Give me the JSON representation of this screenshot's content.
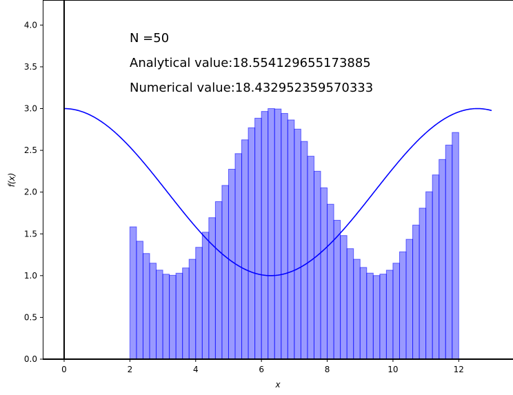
{
  "chart_data": {
    "type": "bar",
    "xlabel": "x",
    "ylabel": "f(x)",
    "xlim": [
      -0.65,
      13.65
    ],
    "ylim": [
      0,
      4.3
    ],
    "xticks": [
      0,
      2,
      4,
      6,
      8,
      10,
      12
    ],
    "xtick_labels": [
      "0",
      "2",
      "4",
      "6",
      "8",
      "10",
      "12"
    ],
    "yticks": [
      0.0,
      0.5,
      1.0,
      1.5,
      2.0,
      2.5,
      3.0,
      3.5,
      4.0
    ],
    "ytick_labels": [
      "0.0",
      "0.5",
      "1.0",
      "1.5",
      "2.0",
      "2.5",
      "3.0",
      "3.5",
      "4.0"
    ],
    "grid": false,
    "annotations": [
      "N =50",
      "Analytical value:18.554129655173885",
      "Numerical value:18.432952359570333"
    ],
    "bar_color": "#0000ff",
    "bar_alpha": 0.4,
    "curve_color": "#0000ff",
    "bars": {
      "x_start": 2,
      "x_end": 12,
      "n": 50,
      "width": 0.2,
      "heights": [
        1.584,
        1.412,
        1.265,
        1.149,
        1.066,
        1.017,
        1.004,
        1.029,
        1.092,
        1.196,
        1.339,
        1.52,
        1.694,
        1.886,
        2.08,
        2.274,
        2.461,
        2.626,
        2.77,
        2.885,
        2.966,
        3.0,
        2.995,
        2.942,
        2.864,
        2.754,
        2.607,
        2.43,
        2.25,
        2.051,
        1.855,
        1.663,
        1.48,
        1.323,
        1.196,
        1.098,
        1.03,
        1.001,
        1.018,
        1.065,
        1.149,
        1.285,
        1.435,
        1.605,
        1.808,
        2.004,
        2.206,
        2.391,
        2.563,
        2.714
      ]
    },
    "curve": {
      "expression": "2 + cos(x/2)",
      "x_range": [
        0,
        13
      ],
      "y_at_0": 3.0,
      "y_max": 3.0,
      "y_min": 1.0
    }
  }
}
